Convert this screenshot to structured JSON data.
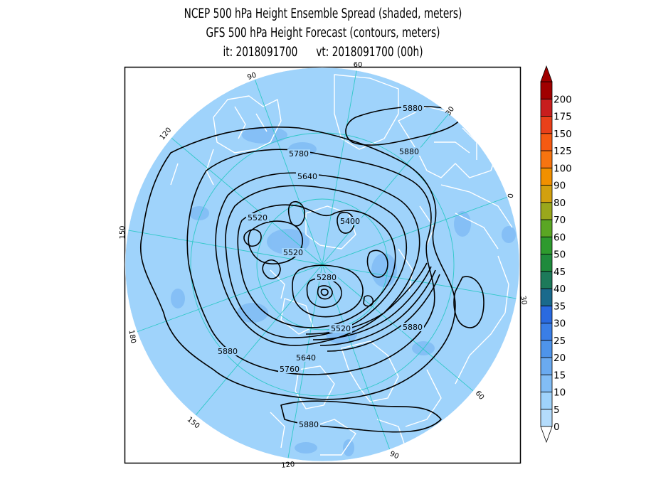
{
  "title": {
    "line1": "NCEP 500 hPa Height Ensemble Spread (shaded, meters)",
    "line2": "GFS 500 hPa Height Forecast (contours, meters)",
    "line3": "it: 2018091700      vt: 2018091700 (00h)"
  },
  "map": {
    "projection": "north polar stereographic",
    "longitude_labels": [
      "60",
      "30",
      "0",
      "30",
      "60",
      "90",
      "120",
      "150",
      "180",
      "150",
      "120",
      "90"
    ],
    "contour_labels": [
      "5880",
      "5880",
      "5780",
      "5640",
      "5520",
      "5400",
      "5520",
      "5280",
      "5520",
      "5880",
      "5640",
      "5760",
      "5880",
      "5880"
    ],
    "colors": {
      "ocean_spread": "#9fd3fb",
      "land_outline": "#ffffff",
      "graticule": "#2fc8c8",
      "contour": "#000000"
    }
  },
  "colorbar": {
    "labels": [
      "0",
      "5",
      "10",
      "15",
      "20",
      "25",
      "30",
      "35",
      "40",
      "45",
      "50",
      "60",
      "70",
      "80",
      "90",
      "100",
      "125",
      "150",
      "175",
      "200"
    ],
    "colors": [
      "#b4dcfc",
      "#9fd3fb",
      "#82bdf5",
      "#6aaaf0",
      "#4e94ea",
      "#3a7ee6",
      "#2a6ae0",
      "#1a6a8c",
      "#1d7a5a",
      "#1f8a3c",
      "#2e9a2e",
      "#5aa623",
      "#9aa71c",
      "#d2a00f",
      "#f19000",
      "#f77410",
      "#f55a12",
      "#e9401a",
      "#c81e1e",
      "#a00000"
    ]
  }
}
